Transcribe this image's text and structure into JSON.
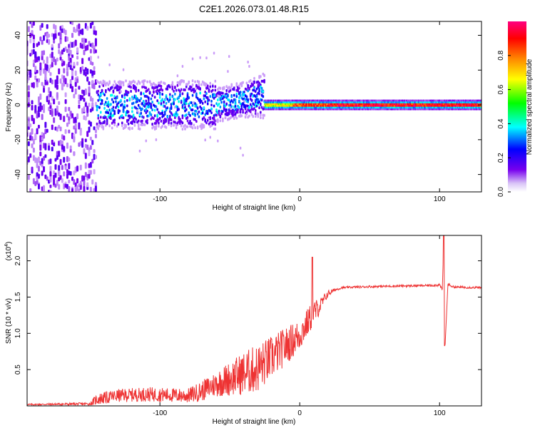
{
  "title": "C2E1.2026.073.01.48.R15",
  "chart_data": [
    {
      "type": "heatmap",
      "title": "C2E1.2026.073.01.48.R15",
      "xlabel": "Height of straight line (km)",
      "ylabel": "Frequency (Hz)",
      "xlim": [
        -195,
        130
      ],
      "ylim": [
        -50,
        48
      ],
      "xticks": [
        -100,
        0,
        100
      ],
      "xtick_labels": [
        "-100",
        "0",
        "100"
      ],
      "yticks": [
        -40,
        -20,
        0,
        20,
        40
      ],
      "ytick_labels": [
        "-40",
        "-20",
        "0",
        "20",
        "40"
      ],
      "colorbar": {
        "label": "Normalized spectral amplitude",
        "range": [
          0,
          1
        ],
        "ticks": [
          0.0,
          0.2,
          0.4,
          0.6,
          0.8
        ],
        "tick_labels": [
          "0.0",
          "0.2",
          "0.4",
          "0.6",
          "0.8"
        ],
        "colormap": [
          "#ffffff",
          "#7700ee",
          "#0000ff",
          "#00ffff",
          "#00ff00",
          "#ffff00",
          "#ff8800",
          "#ff0000",
          "#ff0080"
        ]
      },
      "description_regions": [
        {
          "x": [
            -195,
            -145
          ],
          "freq_spread": [
            -50,
            48
          ],
          "amplitude": [
            0.05,
            0.3
          ]
        },
        {
          "x": [
            -145,
            -25
          ],
          "freq_spread": [
            -10,
            10
          ],
          "amplitude": [
            0.1,
            0.5
          ]
        },
        {
          "x": [
            -25,
            130
          ],
          "freq_spread": [
            -3,
            3
          ],
          "amplitude": [
            0.4,
            1.0
          ]
        }
      ]
    },
    {
      "type": "line",
      "xlabel": "Height of straight line (km)",
      "ylabel": "SNR (10 * v/v)",
      "multiplier_label": "(x10",
      "multiplier_exp": "4",
      "multiplier_close": ")",
      "xlim": [
        -195,
        130
      ],
      "ylim": [
        0,
        2.35
      ],
      "xticks": [
        -100,
        0,
        100
      ],
      "xtick_labels": [
        "-100",
        "0",
        "100"
      ],
      "yticks": [
        0.5,
        1.0,
        1.5,
        2.0
      ],
      "ytick_labels": [
        "0.5",
        "1.0",
        "1.5",
        "2.0"
      ],
      "line_color": "#ee3333",
      "series": [
        {
          "name": "SNR",
          "x": [
            -195,
            -150,
            -145,
            -130,
            -110,
            -80,
            -70,
            -60,
            -50,
            -40,
            -30,
            -20,
            -10,
            0,
            5,
            10,
            15,
            20,
            25,
            30,
            40,
            60,
            90,
            100,
            102,
            103,
            104,
            106,
            110,
            130
          ],
          "y": [
            0.02,
            0.03,
            0.1,
            0.15,
            0.17,
            0.15,
            0.22,
            0.32,
            0.4,
            0.48,
            0.55,
            0.7,
            0.85,
            1.0,
            1.15,
            1.3,
            1.4,
            1.55,
            1.6,
            1.63,
            1.64,
            1.65,
            1.66,
            1.67,
            1.6,
            2.3,
            0.85,
            1.68,
            1.64,
            1.63
          ],
          "noise": [
            0.01,
            0.02,
            0.08,
            0.09,
            0.1,
            0.1,
            0.14,
            0.18,
            0.24,
            0.3,
            0.34,
            0.3,
            0.26,
            0.22,
            0.2,
            0.18,
            0.1,
            0.05,
            0.02,
            0.015,
            0.015,
            0.015,
            0.015,
            0.02,
            0.02,
            0.0,
            0.0,
            0.02,
            0.015,
            0.015
          ]
        }
      ],
      "annotations": [
        {
          "x": 9,
          "y": 2.05,
          "type": "spike"
        },
        {
          "x": 103,
          "y": 2.3,
          "type": "spike-up"
        },
        {
          "x": 103,
          "y": 0.83,
          "type": "spike-down"
        }
      ]
    }
  ]
}
